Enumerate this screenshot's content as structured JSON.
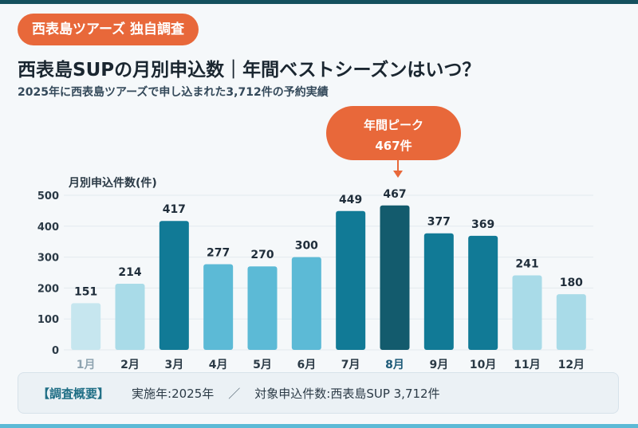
{
  "header": {
    "badge": "西表島ツアーズ 独自調査",
    "title": "西表島SUPの月別申込数｜年間ベストシーズンはいつ？",
    "subtitle": "2025年に西表島ツアーズで申し込まれた3,712件の予約実績"
  },
  "callout": {
    "line1": "年間ピーク",
    "line2": "467件"
  },
  "chart_data": {
    "type": "bar",
    "ylabel": "月別申込件数(件)",
    "ylim": [
      0,
      500
    ],
    "yticks": [
      0,
      100,
      200,
      300,
      400,
      500
    ],
    "grid": true,
    "categories": [
      "1月",
      "2月",
      "3月",
      "4月",
      "5月",
      "6月",
      "7月",
      "8月",
      "9月",
      "10月",
      "11月",
      "12月"
    ],
    "values": [
      151,
      214,
      417,
      277,
      270,
      300,
      449,
      467,
      377,
      369,
      241,
      180
    ],
    "bar_colors": [
      "#c6e6ef",
      "#a9dbe8",
      "#117a96",
      "#5cbad6",
      "#5cbad6",
      "#5cbad6",
      "#117a96",
      "#135b6d",
      "#117a96",
      "#117a96",
      "#a9dbe8",
      "#a9dbe8"
    ],
    "highlight_index": 7,
    "highlight_color": "#1d5a78",
    "faded_label_color": "#8ea3b0",
    "label_color": "#1f2d3a"
  },
  "footer": {
    "label": "【調査概要】",
    "period": "実施年:2025年",
    "separator": "／",
    "target": "対象申込件数:西表島SUP 3,712件"
  },
  "colors": {
    "accent": "#e8683a",
    "dark_teal": "#14505e",
    "light_teal": "#5cbad6"
  }
}
